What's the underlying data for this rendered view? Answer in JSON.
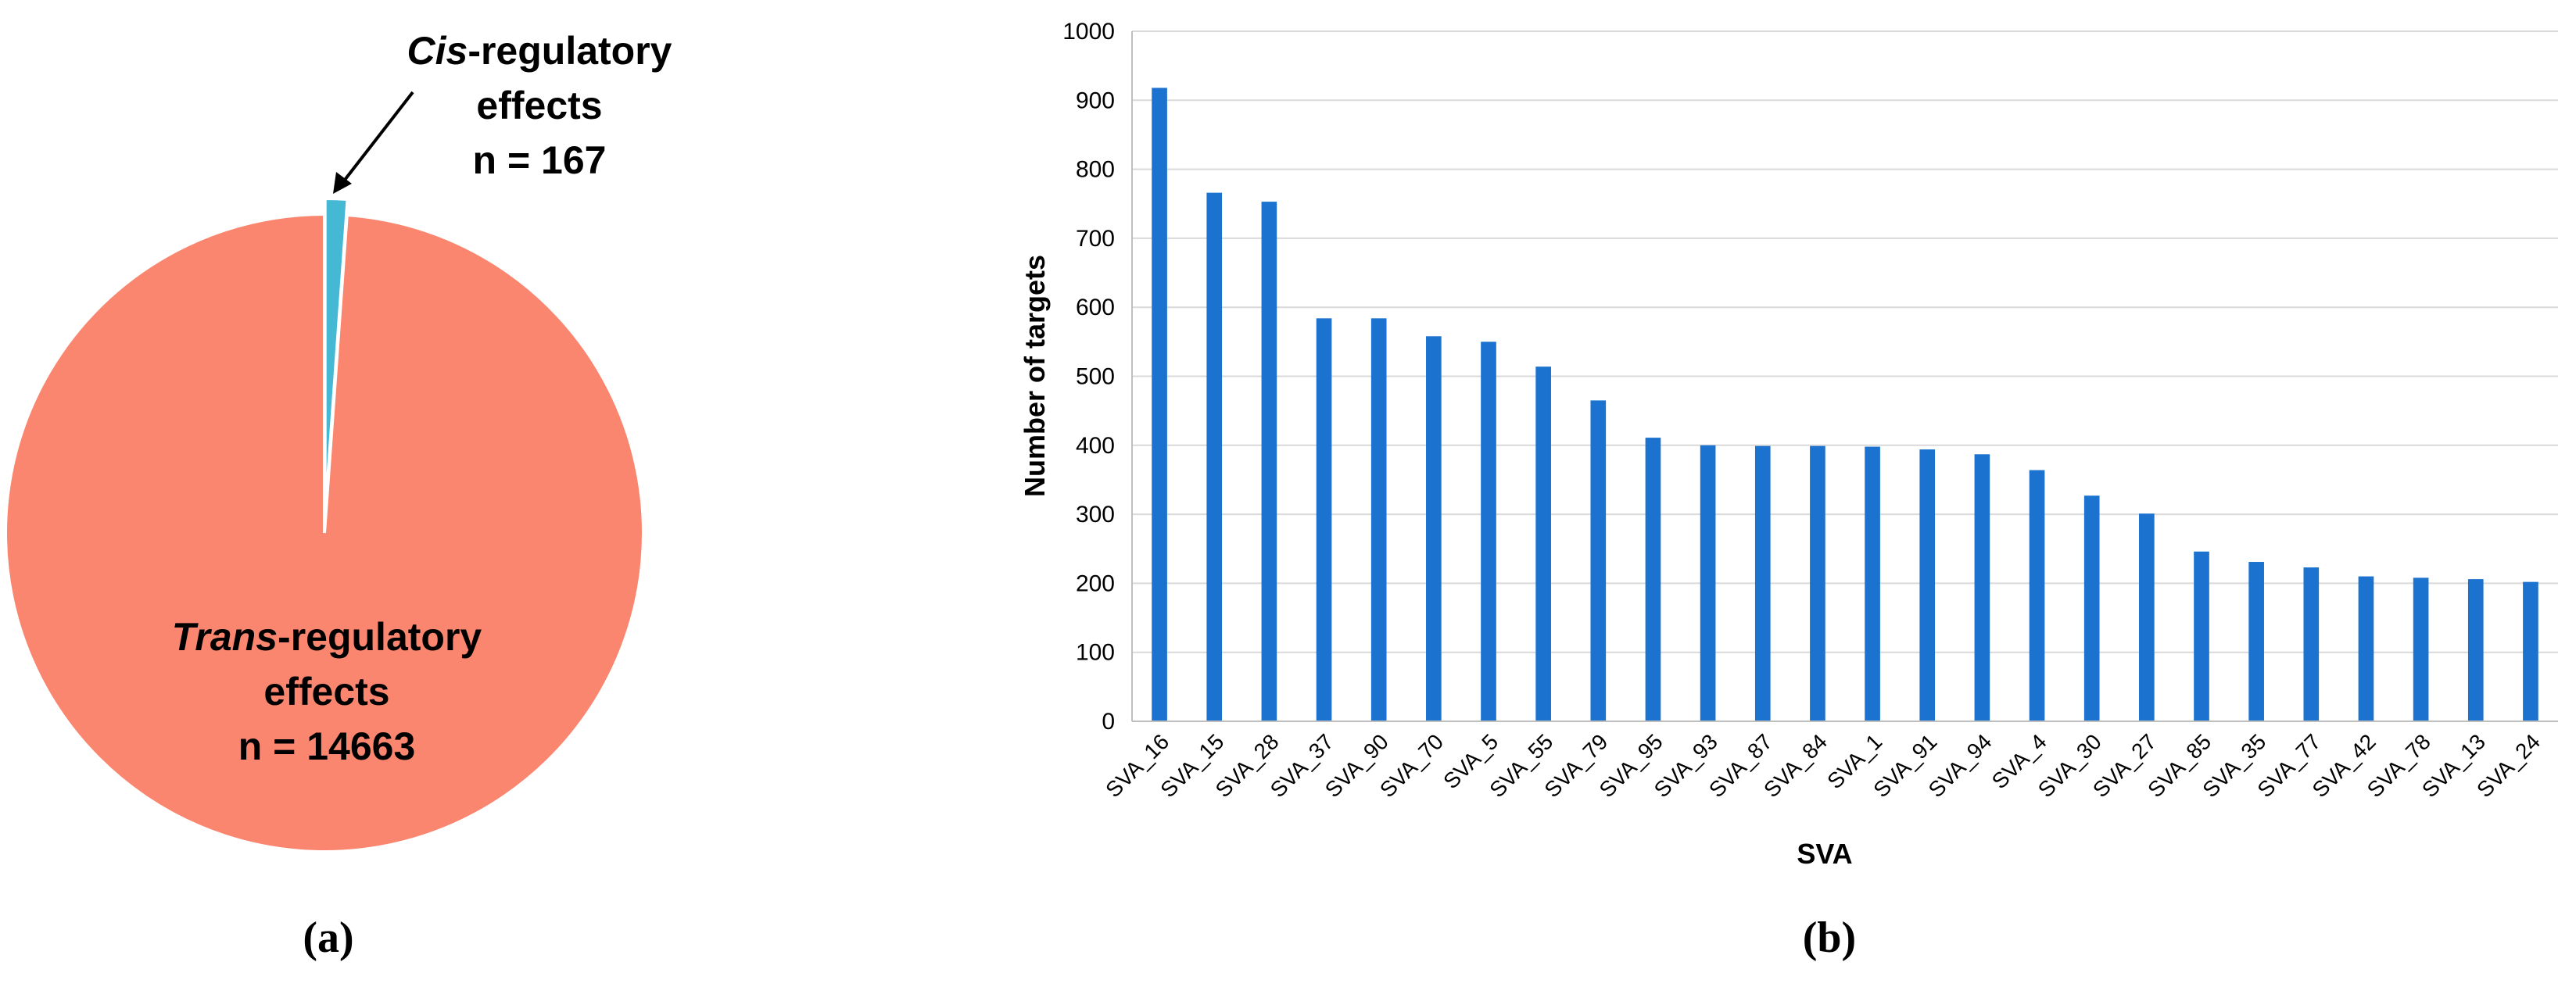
{
  "chart_data": [
    {
      "type": "pie",
      "panel_label": "(a)",
      "slices": [
        {
          "name_italic": "Trans",
          "name_rest": "-regulatory",
          "line2": "effects",
          "value_label": "n = 14663",
          "value": 14663,
          "color": "#fa8670"
        },
        {
          "name_italic": "Cis",
          "name_rest": "-regulatory",
          "line2": "effects",
          "value_label": "n = 167",
          "value": 167,
          "color": "#45b8d3"
        }
      ]
    },
    {
      "type": "bar",
      "panel_label": "(b)",
      "xlabel": "SVA",
      "ylabel": "Number of targets",
      "ylim": [
        0,
        1000
      ],
      "yticks": [
        "0",
        "100",
        "200",
        "300",
        "400",
        "500",
        "600",
        "700",
        "800",
        "900",
        "1000"
      ],
      "grid": true,
      "bar_color": "#1b73cf",
      "categories": [
        "SVA_16",
        "SVA_15",
        "SVA_28",
        "SVA_37",
        "SVA_90",
        "SVA_70",
        "SVA_5",
        "SVA_55",
        "SVA_79",
        "SVA_95",
        "SVA_93",
        "SVA_87",
        "SVA_84",
        "SVA_1",
        "SVA_91",
        "SVA_94",
        "SVA_4",
        "SVA_30",
        "SVA_27",
        "SVA_85",
        "SVA_35",
        "SVA_77",
        "SVA_42",
        "SVA_78",
        "SVA_13",
        "SVA_24"
      ],
      "values": [
        918,
        766,
        753,
        584,
        584,
        558,
        550,
        514,
        465,
        411,
        400,
        399,
        399,
        398,
        394,
        387,
        364,
        327,
        301,
        246,
        231,
        223,
        210,
        208,
        206,
        202
      ]
    }
  ]
}
